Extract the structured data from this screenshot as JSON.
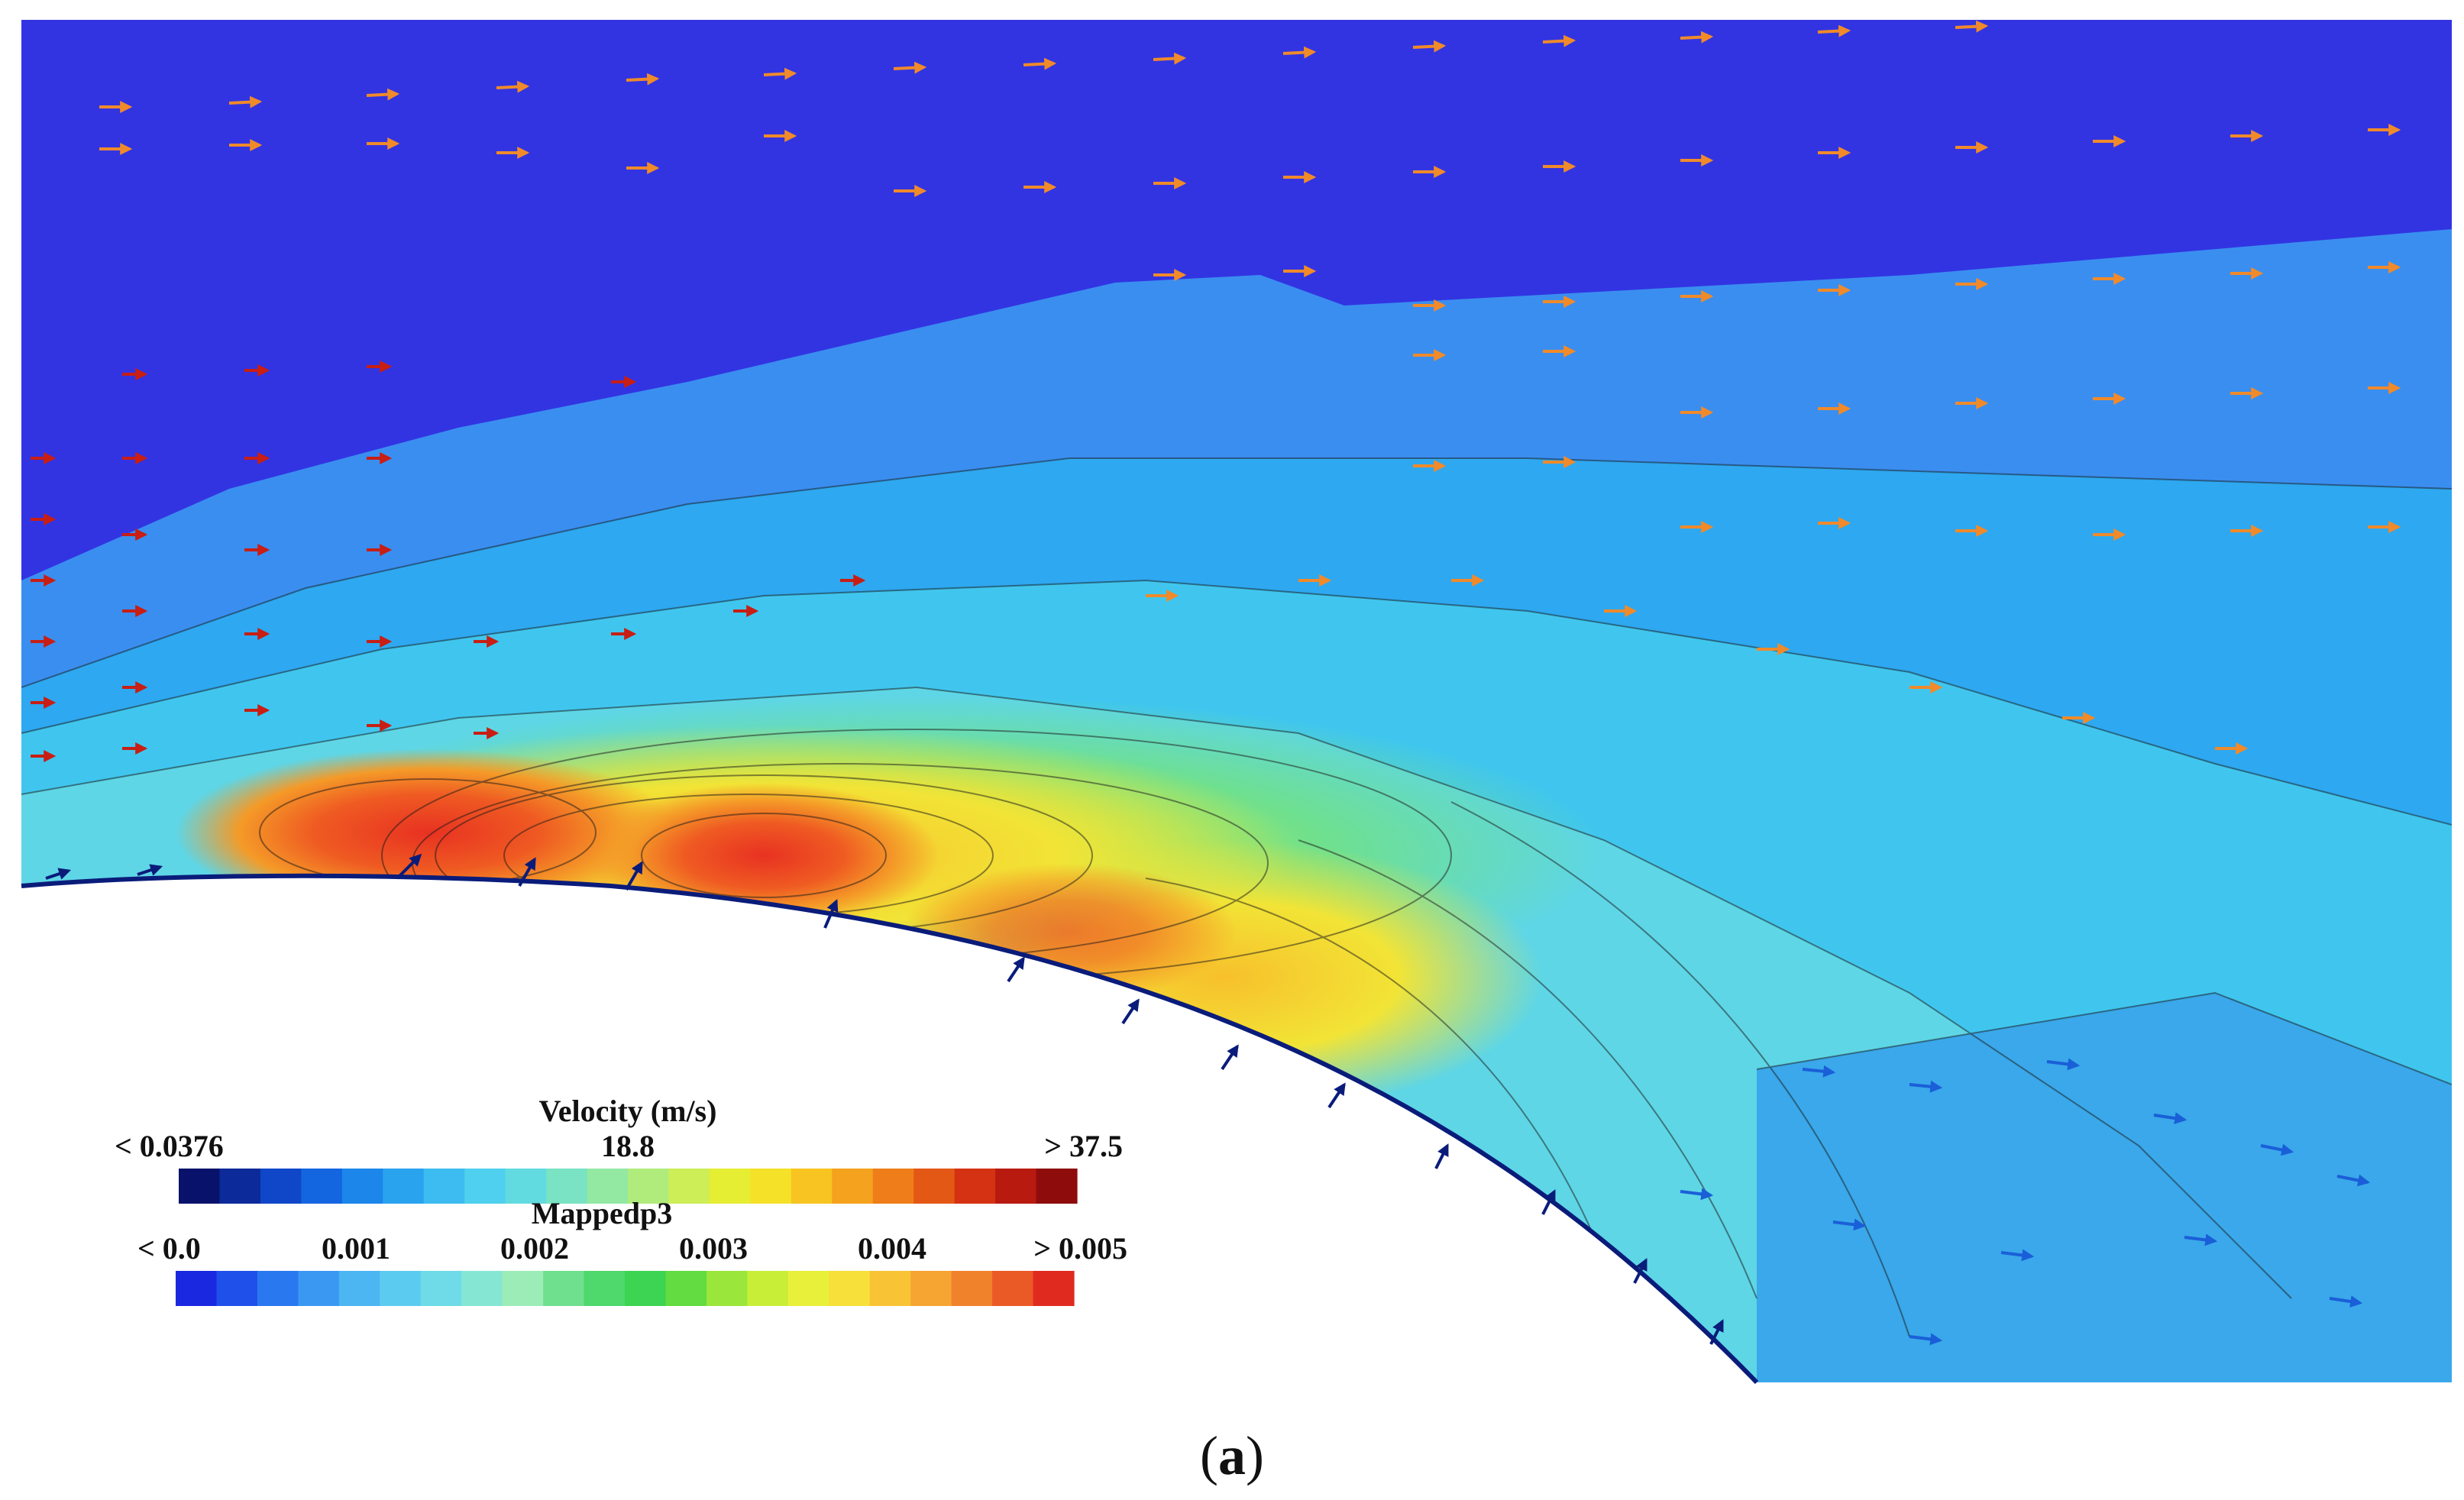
{
  "legend": {
    "velocity": {
      "title": "Velocity (m/s)",
      "ticks": [
        "< 0.0376",
        "18.8",
        "> 37.5"
      ],
      "colors": [
        "#08126b",
        "#0c2a9a",
        "#1047c8",
        "#1465e0",
        "#1c86ea",
        "#2aa3ef",
        "#3cbcf0",
        "#4fd0ee",
        "#62dbe0",
        "#7ae3c4",
        "#93e8a2",
        "#b0ec7c",
        "#cdee56",
        "#e6ee34",
        "#f5e128",
        "#f7c422",
        "#f5a21e",
        "#ef7e1a",
        "#e45816",
        "#d43212",
        "#b81a10",
        "#8e0c0c"
      ]
    },
    "mappedp3": {
      "title": "Mappedp3",
      "ticks": [
        "< 0.0",
        "0.001",
        "0.002",
        "0.003",
        "0.004",
        "> 0.005"
      ],
      "colors": [
        "#1a28e0",
        "#1f50ea",
        "#2a78f0",
        "#3a98f2",
        "#4cb6f2",
        "#5ccbf0",
        "#6fdbe8",
        "#86e6d4",
        "#9cecb8",
        "#6fe08e",
        "#4fd86c",
        "#3cd452",
        "#62dc40",
        "#9ae63a",
        "#c8ee38",
        "#e8f03a",
        "#f7e03a",
        "#f8c436",
        "#f6a432",
        "#f1822c",
        "#ea5a26",
        "#e02a20"
      ]
    }
  },
  "caption": {
    "open": "(",
    "letter": "a",
    "close": ")"
  }
}
